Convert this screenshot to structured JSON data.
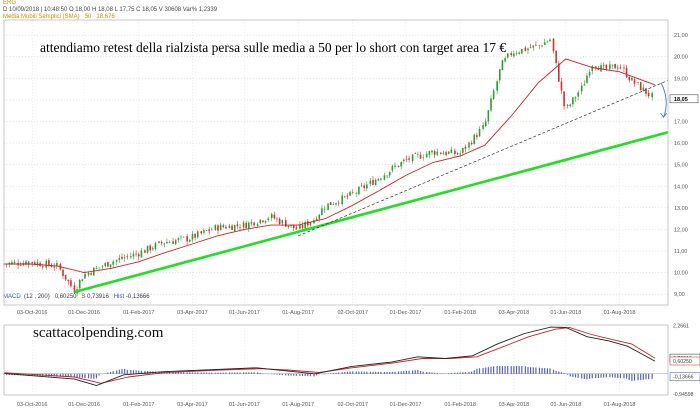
{
  "header": {
    "symbol": "ERG",
    "ohlc_line": "D 10/09/2018  | 10:48:50  O 18,00  H 18,08  L 17,75  C 18,05  V 30608  Var% 1,2339",
    "ma_label": "Media Mobili Semplici (SMA)",
    "ma_period": "50",
    "ma_value": "18,676"
  },
  "annotation": "attendiamo retest della rialzista persa sulle media a 50 per lo short con target area 17 €",
  "watermark": "scattacolpending.com",
  "macd_header": {
    "name": "MACD",
    "params": "(12 , 200)",
    "macd_value": "0,60250",
    "signal_label": "S",
    "signal_value": "0,73916",
    "hist_label": "Hist",
    "hist_value": "-0,13666"
  },
  "colors": {
    "up": "#2e9e2e",
    "down": "#d03030",
    "sma": "#cc2222",
    "trend": "#22dd22",
    "dashed": "#333333",
    "arrow": "#4477cc",
    "macd_line": "#222222",
    "signal_line": "#cc2222",
    "hist_bar": "#5566bb",
    "header_text": "#c98a00",
    "last_box": "#333333"
  },
  "chart_data": [
    {
      "type": "candlestick",
      "x_axis_labels": [
        "03-Oct-2016",
        "01-Dec-2016",
        "01-Feb-2017",
        "03-Apr-2017",
        "01-Jun-2017",
        "01-Aug-2017",
        "02-Oct-2017",
        "01-Dec-2017",
        "01-Feb-2018",
        "03-Apr-2018",
        "01-Jun-2018",
        "01-Aug-2018"
      ],
      "y_ticks": [
        9,
        10,
        11,
        12,
        13,
        14,
        15,
        16,
        17,
        18,
        19,
        20,
        21
      ],
      "y_tick_labels": [
        "9,00",
        "10,00",
        "11,00",
        "12,00",
        "13,00",
        "14,00",
        "15,00",
        "16,00",
        "17,00",
        "18,00",
        "19,00",
        "20,00",
        "21,00"
      ],
      "ylim": [
        8.5,
        21.7
      ],
      "last_price": 18.05,
      "last_price_label": "18,05",
      "close_path": [
        [
          "2016-09-01",
          10.4
        ],
        [
          "2016-10-01",
          10.5
        ],
        [
          "2016-11-01",
          10.3
        ],
        [
          "2016-11-20",
          9.2
        ],
        [
          "2016-12-01",
          9.9
        ],
        [
          "2017-01-01",
          10.5
        ],
        [
          "2017-02-01",
          10.9
        ],
        [
          "2017-03-01",
          11.4
        ],
        [
          "2017-04-01",
          11.6
        ],
        [
          "2017-05-01",
          12.1
        ],
        [
          "2017-06-01",
          12.2
        ],
        [
          "2017-07-01",
          12.6
        ],
        [
          "2017-08-01",
          12.0
        ],
        [
          "2017-08-20",
          12.5
        ],
        [
          "2017-09-01",
          13.1
        ],
        [
          "2017-10-01",
          13.6
        ],
        [
          "2017-11-01",
          14.4
        ],
        [
          "2017-12-01",
          15.2
        ],
        [
          "2018-01-01",
          15.6
        ],
        [
          "2018-02-01",
          15.5
        ],
        [
          "2018-03-01",
          16.8
        ],
        [
          "2018-03-20",
          19.6
        ],
        [
          "2018-04-01",
          20.2
        ],
        [
          "2018-05-01",
          20.5
        ],
        [
          "2018-05-15",
          20.8
        ],
        [
          "2018-06-01",
          17.5
        ],
        [
          "2018-06-20",
          18.6
        ],
        [
          "2018-07-01",
          19.7
        ],
        [
          "2018-07-15",
          19.4
        ],
        [
          "2018-08-01",
          19.6
        ],
        [
          "2018-08-15",
          18.9
        ],
        [
          "2018-09-10",
          18.05
        ]
      ],
      "sma_50": [
        [
          "2016-09-01",
          10.4
        ],
        [
          "2016-10-01",
          10.4
        ],
        [
          "2016-11-01",
          10.3
        ],
        [
          "2016-12-01",
          10.0
        ],
        [
          "2017-01-01",
          10.2
        ],
        [
          "2017-02-01",
          10.5
        ],
        [
          "2017-03-01",
          10.9
        ],
        [
          "2017-04-01",
          11.3
        ],
        [
          "2017-05-01",
          11.7
        ],
        [
          "2017-06-01",
          12.0
        ],
        [
          "2017-07-01",
          12.2
        ],
        [
          "2017-08-01",
          12.2
        ],
        [
          "2017-09-01",
          12.5
        ],
        [
          "2017-10-01",
          13.1
        ],
        [
          "2017-11-01",
          13.8
        ],
        [
          "2017-12-01",
          14.5
        ],
        [
          "2018-01-01",
          15.1
        ],
        [
          "2018-02-01",
          15.4
        ],
        [
          "2018-03-01",
          15.9
        ],
        [
          "2018-04-01",
          17.3
        ],
        [
          "2018-05-01",
          18.8
        ],
        [
          "2018-06-01",
          19.9
        ],
        [
          "2018-07-01",
          19.5
        ],
        [
          "2018-08-01",
          19.3
        ],
        [
          "2018-09-10",
          18.7
        ]
      ],
      "trendlines": [
        {
          "style": "solid",
          "from": [
            "2016-11-20",
            9.1
          ],
          "to": [
            "2018-09-25",
            16.5
          ]
        },
        {
          "style": "dashed",
          "from": [
            "2017-08-01",
            11.7
          ],
          "to": [
            "2018-09-25",
            18.9
          ]
        }
      ],
      "arrow": {
        "from": [
          "2018-09-17",
          18.8
        ],
        "to": [
          "2018-09-20",
          17.2
        ]
      }
    },
    {
      "type": "macd",
      "name": "MACD",
      "y_ticks": [
        2.2661,
        0.73916,
        0.6025,
        -0.13666,
        -0.94598
      ],
      "y_tick_labels": [
        "2,2661",
        "0,73916",
        "0,60250",
        "-0,13666",
        "-0,94598"
      ],
      "ylim": [
        -1.0,
        2.3
      ],
      "macd_path": [
        [
          "2016-09-01",
          0.02
        ],
        [
          "2016-11-20",
          -0.25
        ],
        [
          "2016-12-15",
          -0.55
        ],
        [
          "2017-01-15",
          -0.05
        ],
        [
          "2017-03-01",
          0.1
        ],
        [
          "2017-05-01",
          0.2
        ],
        [
          "2017-06-15",
          0.28
        ],
        [
          "2017-07-15",
          0.15
        ],
        [
          "2017-08-20",
          0.0
        ],
        [
          "2017-10-01",
          0.35
        ],
        [
          "2017-11-15",
          0.55
        ],
        [
          "2017-12-15",
          0.8
        ],
        [
          "2018-01-15",
          0.72
        ],
        [
          "2018-02-15",
          0.85
        ],
        [
          "2018-03-15",
          1.4
        ],
        [
          "2018-04-15",
          1.9
        ],
        [
          "2018-05-15",
          2.2
        ],
        [
          "2018-06-01",
          2.18
        ],
        [
          "2018-06-25",
          1.75
        ],
        [
          "2018-07-20",
          1.55
        ],
        [
          "2018-08-10",
          1.3
        ],
        [
          "2018-09-10",
          0.6
        ]
      ],
      "signal_path": [
        [
          "2016-09-01",
          0.05
        ],
        [
          "2016-11-20",
          -0.15
        ],
        [
          "2016-12-20",
          -0.45
        ],
        [
          "2017-01-20",
          -0.15
        ],
        [
          "2017-03-01",
          0.05
        ],
        [
          "2017-05-01",
          0.17
        ],
        [
          "2017-06-20",
          0.24
        ],
        [
          "2017-07-20",
          0.18
        ],
        [
          "2017-08-25",
          0.06
        ],
        [
          "2017-10-01",
          0.28
        ],
        [
          "2017-11-15",
          0.5
        ],
        [
          "2017-12-20",
          0.72
        ],
        [
          "2018-01-20",
          0.72
        ],
        [
          "2018-02-20",
          0.8
        ],
        [
          "2018-03-20",
          1.25
        ],
        [
          "2018-04-20",
          1.75
        ],
        [
          "2018-05-20",
          2.1
        ],
        [
          "2018-06-05",
          2.18
        ],
        [
          "2018-06-30",
          1.85
        ],
        [
          "2018-07-25",
          1.6
        ],
        [
          "2018-08-15",
          1.4
        ],
        [
          "2018-09-10",
          0.74
        ]
      ]
    }
  ]
}
